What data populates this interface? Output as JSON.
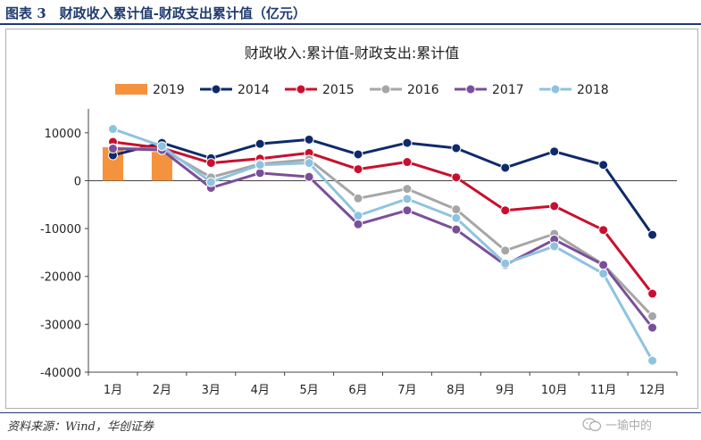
{
  "figure": {
    "label": "图表 3　财政收入累计值-财政支出累计值（亿元）",
    "source": "资料来源：Wind，华创证券",
    "watermark": "一瑜中的"
  },
  "chart_data": {
    "type": "line",
    "title": "财政收入:累计值-财政支出:累计值",
    "xlabel": "",
    "ylabel": "",
    "categories": [
      "1月",
      "2月",
      "3月",
      "4月",
      "5月",
      "6月",
      "7月",
      "8月",
      "9月",
      "10月",
      "11月",
      "12月"
    ],
    "ylim": [
      -40000,
      15000
    ],
    "yticks": [
      10000,
      0,
      -10000,
      -20000,
      -30000,
      -40000
    ],
    "grid": false,
    "legend_position": "top",
    "series": [
      {
        "name": "2019",
        "kind": "bar",
        "color": "#f5923e",
        "values": [
          7000,
          6000,
          null,
          null,
          null,
          null,
          null,
          null,
          null,
          null,
          null,
          null
        ]
      },
      {
        "name": "2014",
        "kind": "line",
        "color": "#0e2a6b",
        "values": [
          5300,
          7900,
          4700,
          7700,
          8600,
          5500,
          7900,
          6800,
          2700,
          6100,
          3300,
          -11300
        ]
      },
      {
        "name": "2015",
        "kind": "line",
        "color": "#c8102e",
        "values": [
          8100,
          6800,
          3700,
          4600,
          5800,
          2400,
          3900,
          700,
          -6200,
          -5300,
          -10300,
          -23600
        ]
      },
      {
        "name": "2016",
        "kind": "line",
        "color": "#a6a6a6",
        "values": [
          6800,
          6600,
          700,
          3500,
          4400,
          -3700,
          -1700,
          -6000,
          -14600,
          -11100,
          -17500,
          -28300
        ]
      },
      {
        "name": "2017",
        "kind": "line",
        "color": "#7a4f9a",
        "values": [
          6700,
          6400,
          -1500,
          1600,
          800,
          -9100,
          -6200,
          -10200,
          -17600,
          -12300,
          -17600,
          -30700
        ]
      },
      {
        "name": "2018",
        "kind": "line",
        "color": "#8ec3e0",
        "values": [
          10800,
          7200,
          -300,
          3300,
          3700,
          -7300,
          -3800,
          -7800,
          -17300,
          -13700,
          -19400,
          -37600
        ]
      }
    ]
  }
}
